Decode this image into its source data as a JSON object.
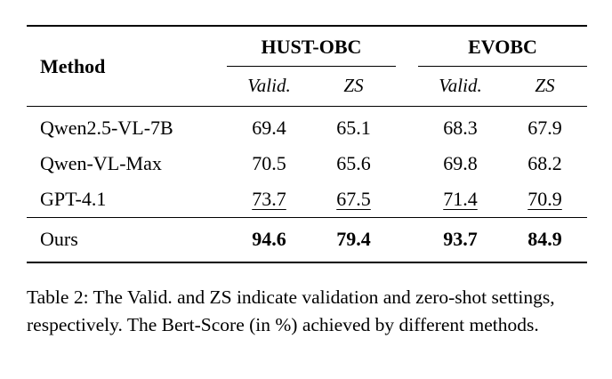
{
  "table": {
    "method_header": "Method",
    "groups": [
      {
        "label": "HUST-OBC",
        "subcols": [
          "Valid.",
          "ZS"
        ]
      },
      {
        "label": "EVOBC",
        "subcols": [
          "Valid.",
          "ZS"
        ]
      }
    ],
    "rows": [
      {
        "method": "Qwen2.5-VL-7B",
        "values": [
          "69.4",
          "65.1",
          "68.3",
          "67.9"
        ]
      },
      {
        "method": "Qwen-VL-Max",
        "values": [
          "70.5",
          "65.6",
          "69.8",
          "68.2"
        ]
      },
      {
        "method": "GPT-4.1",
        "values": [
          "73.7",
          "67.5",
          "71.4",
          "70.9"
        ]
      },
      {
        "method": "Ours",
        "values": [
          "94.6",
          "79.4",
          "93.7",
          "84.9"
        ]
      }
    ]
  },
  "caption": {
    "text": "Table 2: The Valid. and ZS indicate validation and zero-shot settings, respectively. The Bert-Score (in %) achieved by different methods."
  }
}
